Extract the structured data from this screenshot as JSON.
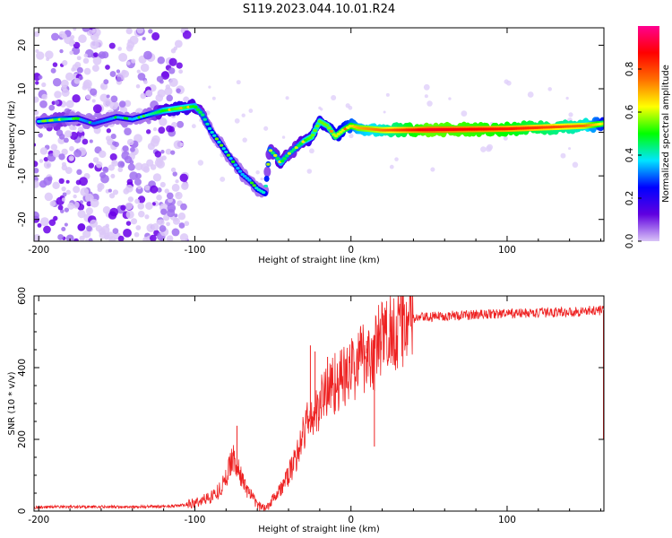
{
  "title": "S119.2023.044.10.01.R24",
  "chart_data": [
    {
      "type": "heatmap",
      "title": "",
      "xlabel": "Height of straight line (km)",
      "ylabel": "Frequency (Hz)",
      "xlim": [
        -203,
        162
      ],
      "ylim": [
        -25,
        24
      ],
      "xticks": [
        -200,
        -100,
        0,
        100
      ],
      "yticks": [
        -20,
        -10,
        0,
        10,
        20
      ],
      "colorbar": {
        "label": "Normalized spectral amplitude",
        "range": [
          0,
          1
        ],
        "ticks": [
          0.0,
          0.2,
          0.4,
          0.6,
          0.8
        ],
        "tick_labels": [
          "0.0",
          "0.2",
          "0.4",
          "0.6",
          "0.8"
        ],
        "colormap": [
          "#d9c4f7",
          "#6000e0",
          "#0000ff",
          "#00e5ff",
          "#00ff00",
          "#ffff00",
          "#ff7000",
          "#ff0000",
          "#ff0090"
        ]
      },
      "trace": {
        "description_x": [
          -200,
          -185,
          -175,
          -165,
          -150,
          -140,
          -130,
          -120,
          -110,
          -100,
          -95,
          -90,
          -85,
          -80,
          -75,
          -70,
          -65,
          -60,
          -55,
          -52,
          -48,
          -45,
          -40,
          -35,
          -30,
          -25,
          -20,
          -15,
          -10,
          -5,
          0,
          5,
          20,
          50,
          100,
          150,
          162
        ],
        "frequency_hz": [
          2.5,
          3.0,
          3.2,
          2.0,
          3.5,
          3.0,
          4.0,
          5.0,
          5.5,
          6.0,
          4.0,
          0.5,
          -2.0,
          -4.5,
          -7.0,
          -9.5,
          -11.0,
          -13.0,
          -14.0,
          -4.0,
          -5.5,
          -7.0,
          -5.0,
          -3.5,
          -2.0,
          -1.0,
          2.5,
          1.5,
          -1.0,
          0.5,
          1.5,
          1.0,
          0.5,
          0.6,
          0.8,
          1.5,
          2.0
        ],
        "amplitude": [
          0.4,
          0.45,
          0.35,
          0.3,
          0.35,
          0.35,
          0.4,
          0.5,
          0.55,
          0.5,
          0.45,
          0.4,
          0.4,
          0.4,
          0.35,
          0.35,
          0.35,
          0.4,
          0.4,
          0.45,
          0.45,
          0.5,
          0.45,
          0.45,
          0.5,
          0.55,
          0.55,
          0.55,
          0.6,
          0.6,
          0.65,
          0.7,
          0.75,
          0.9,
          0.85,
          0.75,
          0.6
        ]
      },
      "noise_region_x": [
        -203,
        -110
      ]
    },
    {
      "type": "line",
      "title": "",
      "xlabel": "Height of straight line (km)",
      "ylabel": "SNR (10 * v/v)",
      "xlim": [
        -203,
        162
      ],
      "ylim": [
        0,
        600
      ],
      "xticks": [
        -200,
        -100,
        0,
        100
      ],
      "yticks": [
        0,
        200,
        400,
        600
      ],
      "color": "#ee2222",
      "series": [
        {
          "name": "SNR",
          "x": [
            -203,
            -190,
            -180,
            -160,
            -140,
            -120,
            -110,
            -100,
            -95,
            -90,
            -85,
            -80,
            -78,
            -76,
            -74,
            -72,
            -70,
            -68,
            -65,
            -62,
            -60,
            -58,
            -55,
            -52,
            -50,
            -45,
            -40,
            -35,
            -32,
            -30,
            -28,
            -25,
            -22,
            -20,
            -18,
            -15,
            -10,
            -5,
            0,
            5,
            10,
            15,
            17,
            20,
            25,
            30,
            35,
            40,
            45,
            50,
            60,
            70,
            80,
            90,
            100,
            110,
            120,
            130,
            140,
            150,
            160,
            162
          ],
          "y": [
            10,
            12,
            12,
            12,
            12,
            13,
            15,
            22,
            30,
            40,
            55,
            90,
            120,
            160,
            130,
            110,
            95,
            70,
            50,
            30,
            18,
            12,
            10,
            20,
            40,
            60,
            100,
            150,
            200,
            220,
            250,
            260,
            270,
            300,
            320,
            340,
            360,
            370,
            390,
            420,
            440,
            430,
            470,
            480,
            500,
            520,
            530,
            535,
            540,
            540,
            545,
            545,
            548,
            550,
            550,
            552,
            552,
            555,
            555,
            558,
            560,
            560
          ],
          "spikes": [
            {
              "x": -73,
              "y": 238
            },
            {
              "x": -26,
              "y": 462
            },
            {
              "x": -23,
              "y": 445
            },
            {
              "x": -15,
              "y": 430
            },
            {
              "x": 10,
              "y": 475
            },
            {
              "x": 15,
              "y": 180
            },
            {
              "x": 25,
              "y": 550
            }
          ]
        }
      ]
    }
  ]
}
